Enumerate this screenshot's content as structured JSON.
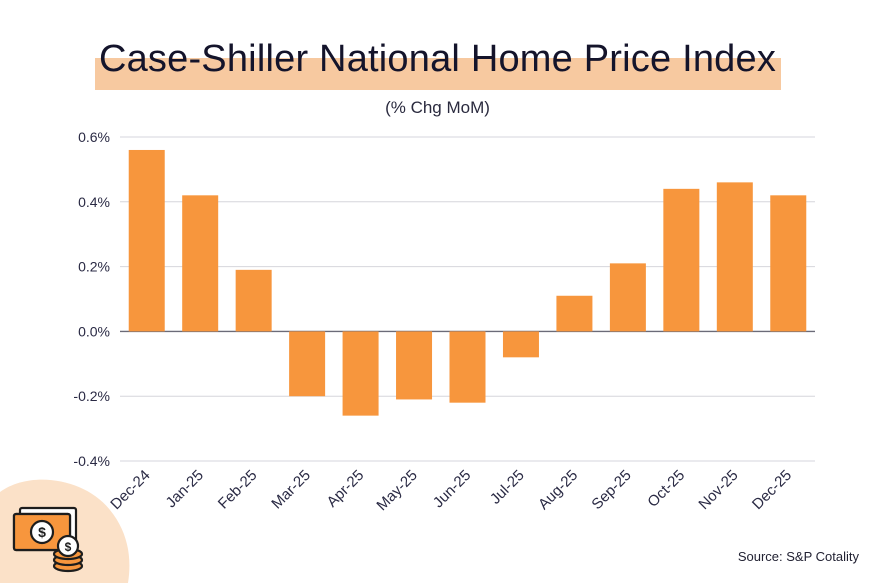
{
  "chart_data": {
    "type": "bar",
    "title": "Case-Shiller National Home Price Index",
    "subtitle": "(% Chg MoM)",
    "xlabel": "",
    "ylabel": "",
    "categories": [
      "Dec-24",
      "Jan-25",
      "Feb-25",
      "Mar-25",
      "Apr-25",
      "May-25",
      "Jun-25",
      "Jul-25",
      "Aug-25",
      "Sep-25",
      "Oct-25",
      "Nov-25",
      "Dec-25"
    ],
    "values": [
      0.56,
      0.42,
      0.19,
      -0.2,
      -0.26,
      -0.21,
      -0.22,
      -0.08,
      0.11,
      0.21,
      0.44,
      0.46,
      0.42
    ],
    "ylim": [
      -0.4,
      0.6
    ],
    "yticks": [
      0.6,
      0.4,
      0.2,
      0.0,
      -0.2,
      -0.4
    ],
    "ytick_labels": [
      "0.6%",
      "0.4%",
      "0.2%",
      "0.0%",
      "-0.2%",
      "-0.4%"
    ],
    "grid": true,
    "bar_color": "#f7963d",
    "source": "Source: S&P Cotality"
  },
  "icon": "money-stack-icon"
}
